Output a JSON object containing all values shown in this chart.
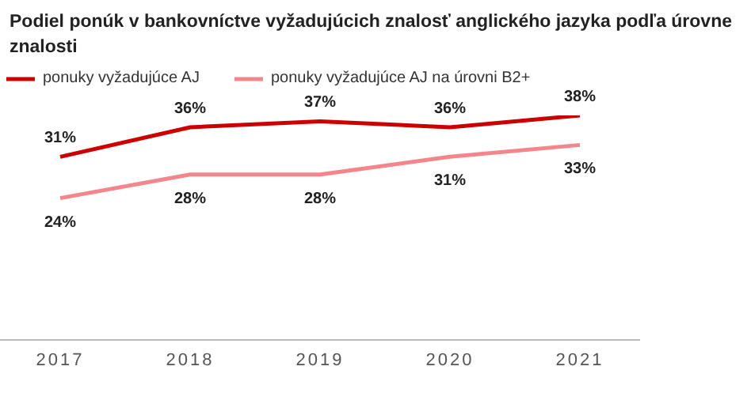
{
  "chart_data": {
    "type": "line",
    "title": "Podiel ponúk v bankovníctve vyžadujúcich znalosť anglického jazyka podľa úrovne znalosti",
    "categories": [
      "2017",
      "2018",
      "2019",
      "2020",
      "2021"
    ],
    "series": [
      {
        "name": "ponuky vyžadujúce AJ",
        "color": "#cc0000",
        "values": [
          31,
          36,
          37,
          36,
          38
        ],
        "value_labels": [
          "31%",
          "36%",
          "37%",
          "36%",
          "38%"
        ]
      },
      {
        "name": "ponuky vyžadujúce AJ na úrovni B2+",
        "color": "#f4868b",
        "values": [
          24,
          28,
          28,
          31,
          33
        ],
        "value_labels": [
          "24%",
          "28%",
          "28%",
          "31%",
          "33%"
        ]
      }
    ],
    "tick_labels": "x",
    "legend": "top left",
    "marker": "none",
    "line_style": "solid"
  }
}
